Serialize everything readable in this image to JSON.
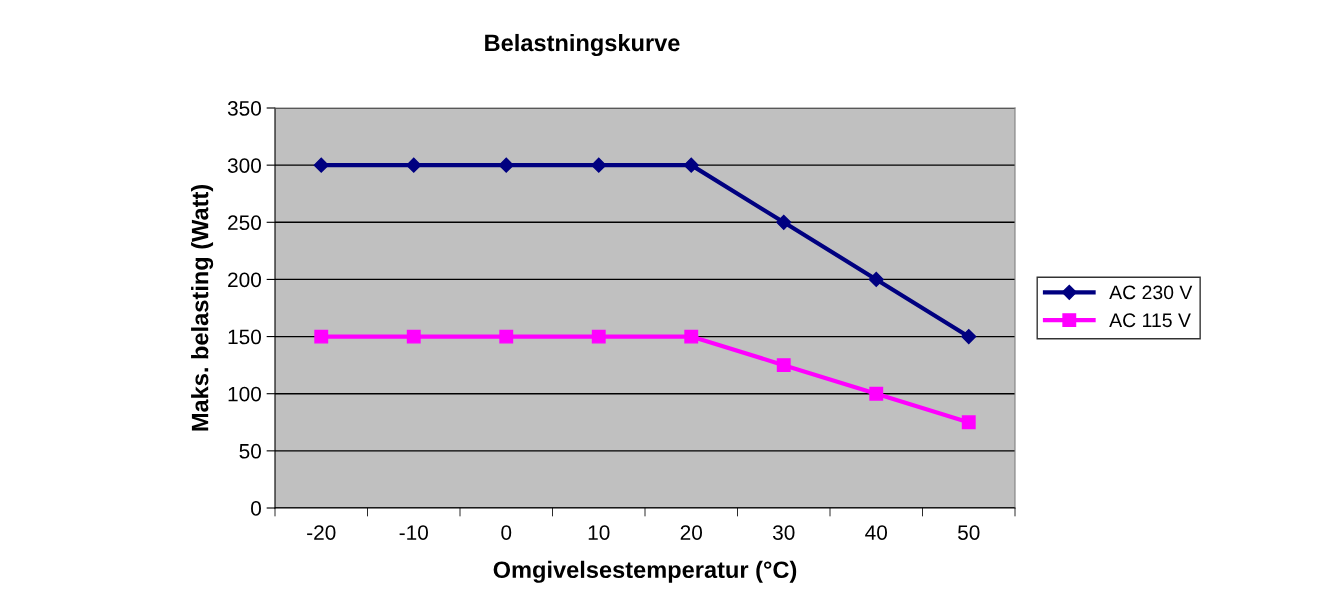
{
  "chart_data": {
    "type": "line",
    "title": "Belastningskurve",
    "xlabel": "Omgivelsestemperatur (°C)",
    "ylabel": "Maks. belasting (Watt)",
    "categories": [
      "-20",
      "-10",
      "0",
      "10",
      "20",
      "30",
      "40",
      "50"
    ],
    "series": [
      {
        "name": "AC 230 V",
        "color": "#000080",
        "marker": "diamond",
        "values": [
          300,
          300,
          300,
          300,
          300,
          250,
          200,
          150
        ]
      },
      {
        "name": "AC 115 V",
        "color": "#ff00ff",
        "marker": "square",
        "values": [
          150,
          150,
          150,
          150,
          150,
          125,
          100,
          75
        ]
      }
    ],
    "ylim": [
      0,
      350
    ],
    "yticks": [
      0,
      50,
      100,
      150,
      200,
      250,
      300,
      350
    ],
    "grid": "y",
    "legend": "right",
    "line_style": "solid"
  }
}
